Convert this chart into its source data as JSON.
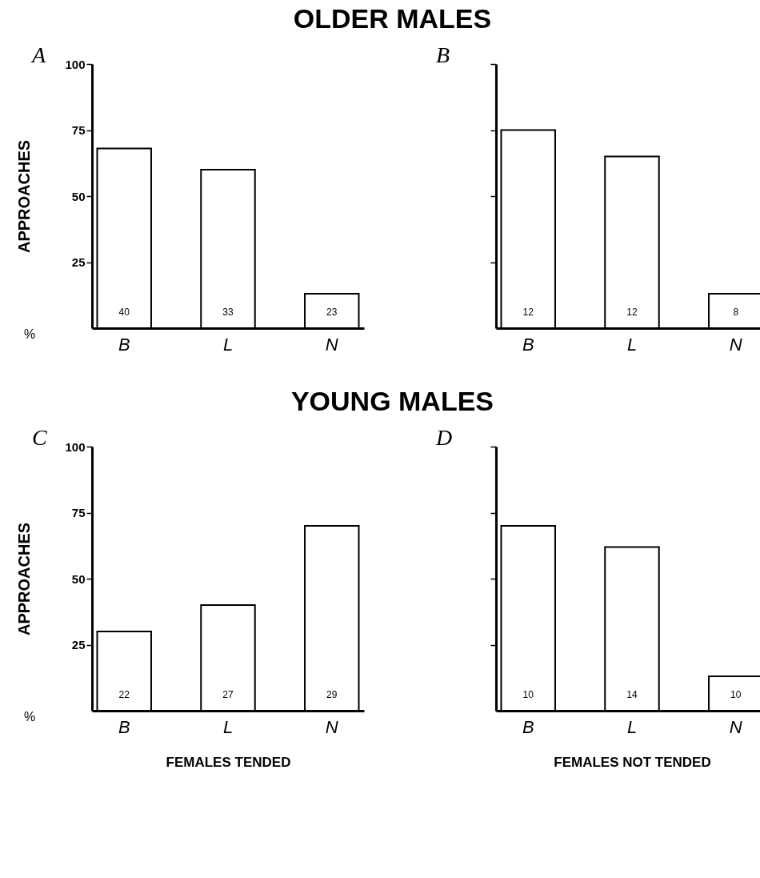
{
  "chart_data": [
    {
      "type": "bar",
      "title": "OLDER MALES",
      "categories": [
        "B",
        "L",
        "N"
      ],
      "values": [
        68,
        60,
        13
      ],
      "color": "#ffffff",
      "ylabel": "APPROACHES",
      "ylim": [
        0,
        100
      ],
      "yticks": [
        25,
        50,
        75,
        100
      ],
      "annotations": [
        "A",
        "%",
        "40",
        "33",
        "23"
      ]
    },
    {
      "type": "bar",
      "categories": [
        "B",
        "L",
        "N"
      ],
      "values": [
        75,
        65,
        13
      ],
      "color": "#ffffff",
      "ylim": [
        0,
        100
      ],
      "yticks": [
        {
          "value": 25,
          "label": null
        },
        {
          "value": 50,
          "label": null
        },
        {
          "value": 75,
          "label": null
        },
        {
          "value": 100,
          "label": null
        }
      ],
      "tick_labels": "x",
      "annotations": [
        "B",
        "12",
        "12",
        "8"
      ]
    },
    {
      "type": "bar",
      "title": "YOUNG MALES",
      "categories": [
        "B",
        "L",
        "N"
      ],
      "values": [
        30,
        40,
        70
      ],
      "color": "#ffffff",
      "ylabel": "APPROACHES",
      "xlabel": "FEMALES TENDED",
      "ylim": [
        0,
        100
      ],
      "yticks": [
        25,
        50,
        75,
        100
      ],
      "annotations": [
        "C",
        "%",
        "22",
        "27",
        "29"
      ]
    },
    {
      "type": "bar",
      "categories": [
        "B",
        "L",
        "N"
      ],
      "values": [
        70,
        62,
        13
      ],
      "color": "#ffffff",
      "xlabel": "FEMALES NOT TENDED",
      "ylim": [
        0,
        100
      ],
      "yticks": [
        {
          "value": 25,
          "label": null
        },
        {
          "value": 50,
          "label": null
        },
        {
          "value": 75,
          "label": null
        },
        {
          "value": 100,
          "label": null
        }
      ],
      "tick_labels": "x",
      "annotations": [
        "D",
        "10",
        "14",
        "10"
      ]
    }
  ]
}
